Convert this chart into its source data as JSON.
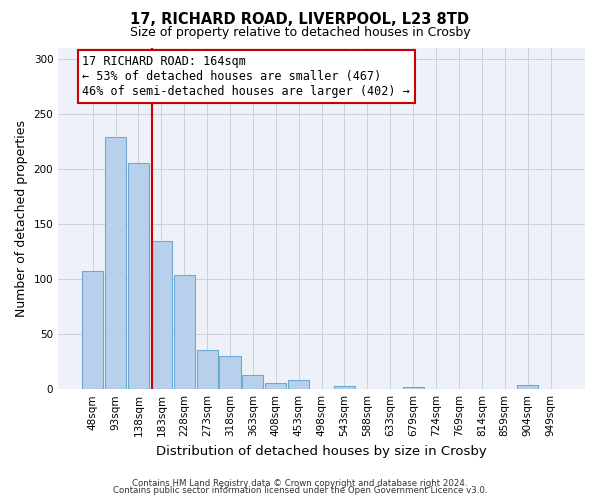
{
  "title_line1": "17, RICHARD ROAD, LIVERPOOL, L23 8TD",
  "title_line2": "Size of property relative to detached houses in Crosby",
  "xlabel": "Distribution of detached houses by size in Crosby",
  "ylabel": "Number of detached properties",
  "bar_labels": [
    "48sqm",
    "93sqm",
    "138sqm",
    "183sqm",
    "228sqm",
    "273sqm",
    "318sqm",
    "363sqm",
    "408sqm",
    "453sqm",
    "498sqm",
    "543sqm",
    "588sqm",
    "633sqm",
    "679sqm",
    "724sqm",
    "769sqm",
    "814sqm",
    "859sqm",
    "904sqm",
    "949sqm"
  ],
  "bar_values": [
    107,
    229,
    205,
    134,
    104,
    36,
    30,
    13,
    6,
    8,
    0,
    3,
    0,
    0,
    2,
    0,
    0,
    0,
    0,
    4,
    0
  ],
  "bar_color": "#b8d0eb",
  "bar_edge_color": "#6aaad4",
  "bar_linewidth": 0.8,
  "vline_color": "#cc0000",
  "vline_x": 2.58,
  "annotation_title": "17 RICHARD ROAD: 164sqm",
  "annotation_line2": "← 53% of detached houses are smaller (467)",
  "annotation_line3": "46% of semi-detached houses are larger (402) →",
  "annotation_box_color": "#ffffff",
  "annotation_box_edgecolor": "#cc0000",
  "ylim": [
    0,
    310
  ],
  "yticks": [
    0,
    50,
    100,
    150,
    200,
    250,
    300
  ],
  "background_color": "#ffffff",
  "plot_bg_color": "#eef2f8",
  "grid_color": "#c8d0dc",
  "footer_line1": "Contains HM Land Registry data © Crown copyright and database right 2024.",
  "footer_line2": "Contains public sector information licensed under the Open Government Licence v3.0."
}
